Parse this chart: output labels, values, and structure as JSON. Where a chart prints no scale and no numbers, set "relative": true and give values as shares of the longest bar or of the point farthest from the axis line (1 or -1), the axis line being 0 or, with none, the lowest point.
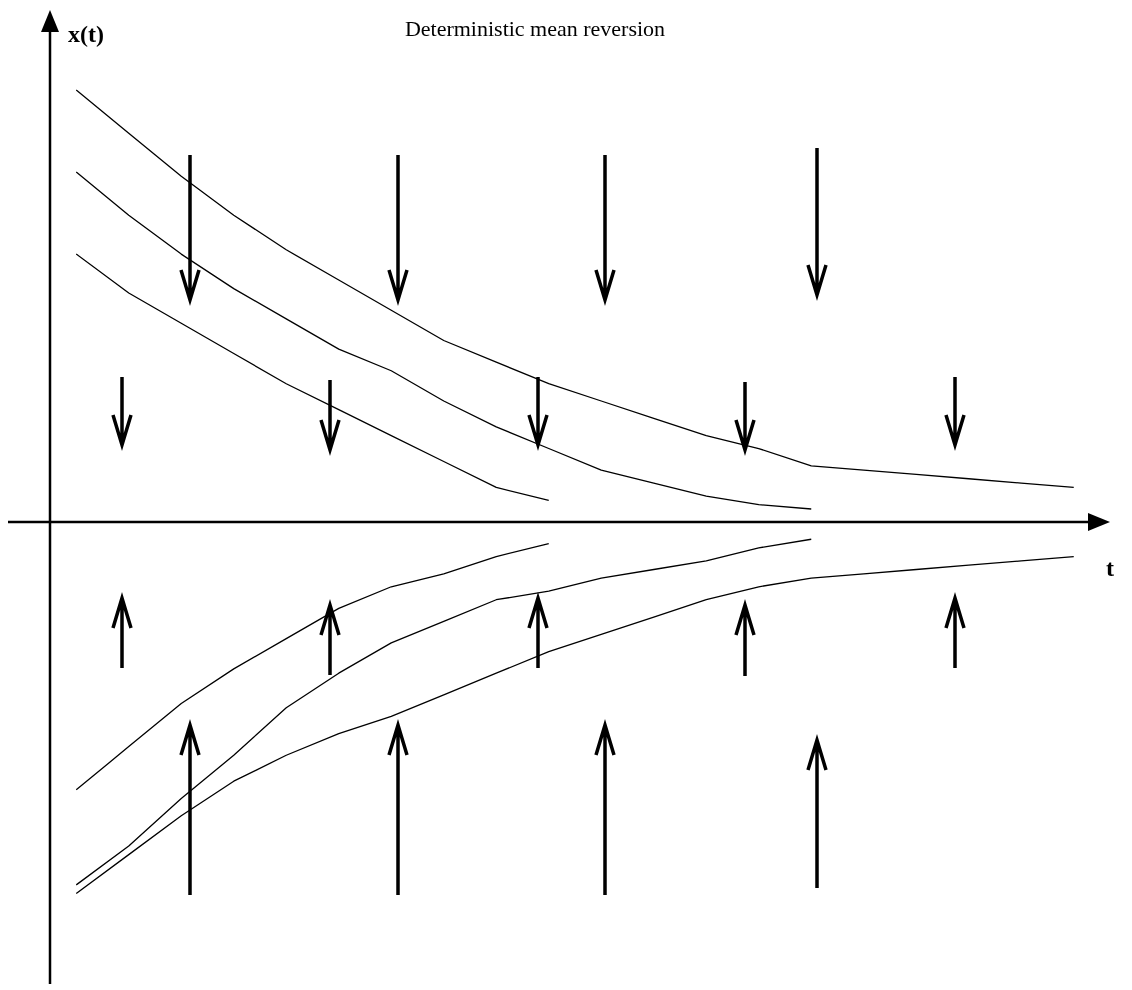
{
  "chart_data": {
    "type": "line",
    "title": "Deterministic mean reversion",
    "xlabel": "t",
    "ylabel": "x(t)",
    "relative": true,
    "grid": false,
    "legend": false,
    "marker": "none",
    "line_style": "solid",
    "categories": [
      null,
      null,
      null,
      null,
      null,
      null,
      null,
      null,
      null,
      null,
      null,
      null,
      null,
      null,
      null,
      null,
      null,
      null,
      null,
      null
    ],
    "series": [
      {
        "color": "#000000",
        "values": [
          1.0,
          0.9,
          0.8,
          0.71,
          0.63,
          0.56,
          0.49,
          0.42,
          0.37,
          0.32,
          0.28,
          0.24,
          0.2,
          0.17,
          0.13,
          0.12,
          0.11,
          0.1,
          0.09,
          0.08
        ]
      },
      {
        "color": "#000000",
        "values": [
          0.81,
          0.71,
          0.62,
          0.54,
          0.47,
          0.4,
          0.35,
          0.28,
          0.22,
          0.17,
          0.12,
          0.09,
          0.06,
          0.04,
          0.03,
          null,
          null,
          null,
          null,
          null
        ]
      },
      {
        "color": "#000000",
        "values": [
          0.62,
          0.53,
          0.46,
          0.39,
          0.32,
          0.26,
          0.2,
          0.14,
          0.08,
          0.05,
          null,
          null,
          null,
          null,
          null,
          null,
          null,
          null,
          null,
          null
        ]
      },
      {
        "color": "#000000",
        "values": [
          -0.62,
          -0.52,
          -0.42,
          -0.34,
          -0.27,
          -0.2,
          -0.15,
          -0.12,
          -0.08,
          -0.05,
          null,
          null,
          null,
          null,
          null,
          null,
          null,
          null,
          null,
          null
        ]
      },
      {
        "color": "#000000",
        "values": [
          -0.84,
          -0.75,
          -0.64,
          -0.54,
          -0.43,
          -0.35,
          -0.28,
          -0.23,
          -0.18,
          -0.16,
          -0.13,
          -0.11,
          -0.09,
          -0.06,
          -0.04,
          null,
          null,
          null,
          null,
          null
        ]
      },
      {
        "color": "#000000",
        "values": [
          -0.86,
          -0.77,
          -0.68,
          -0.6,
          -0.54,
          -0.49,
          -0.45,
          -0.4,
          -0.35,
          -0.3,
          -0.26,
          -0.22,
          -0.18,
          -0.15,
          -0.13,
          -0.12,
          -0.11,
          -0.1,
          -0.09,
          -0.08
        ]
      }
    ]
  }
}
